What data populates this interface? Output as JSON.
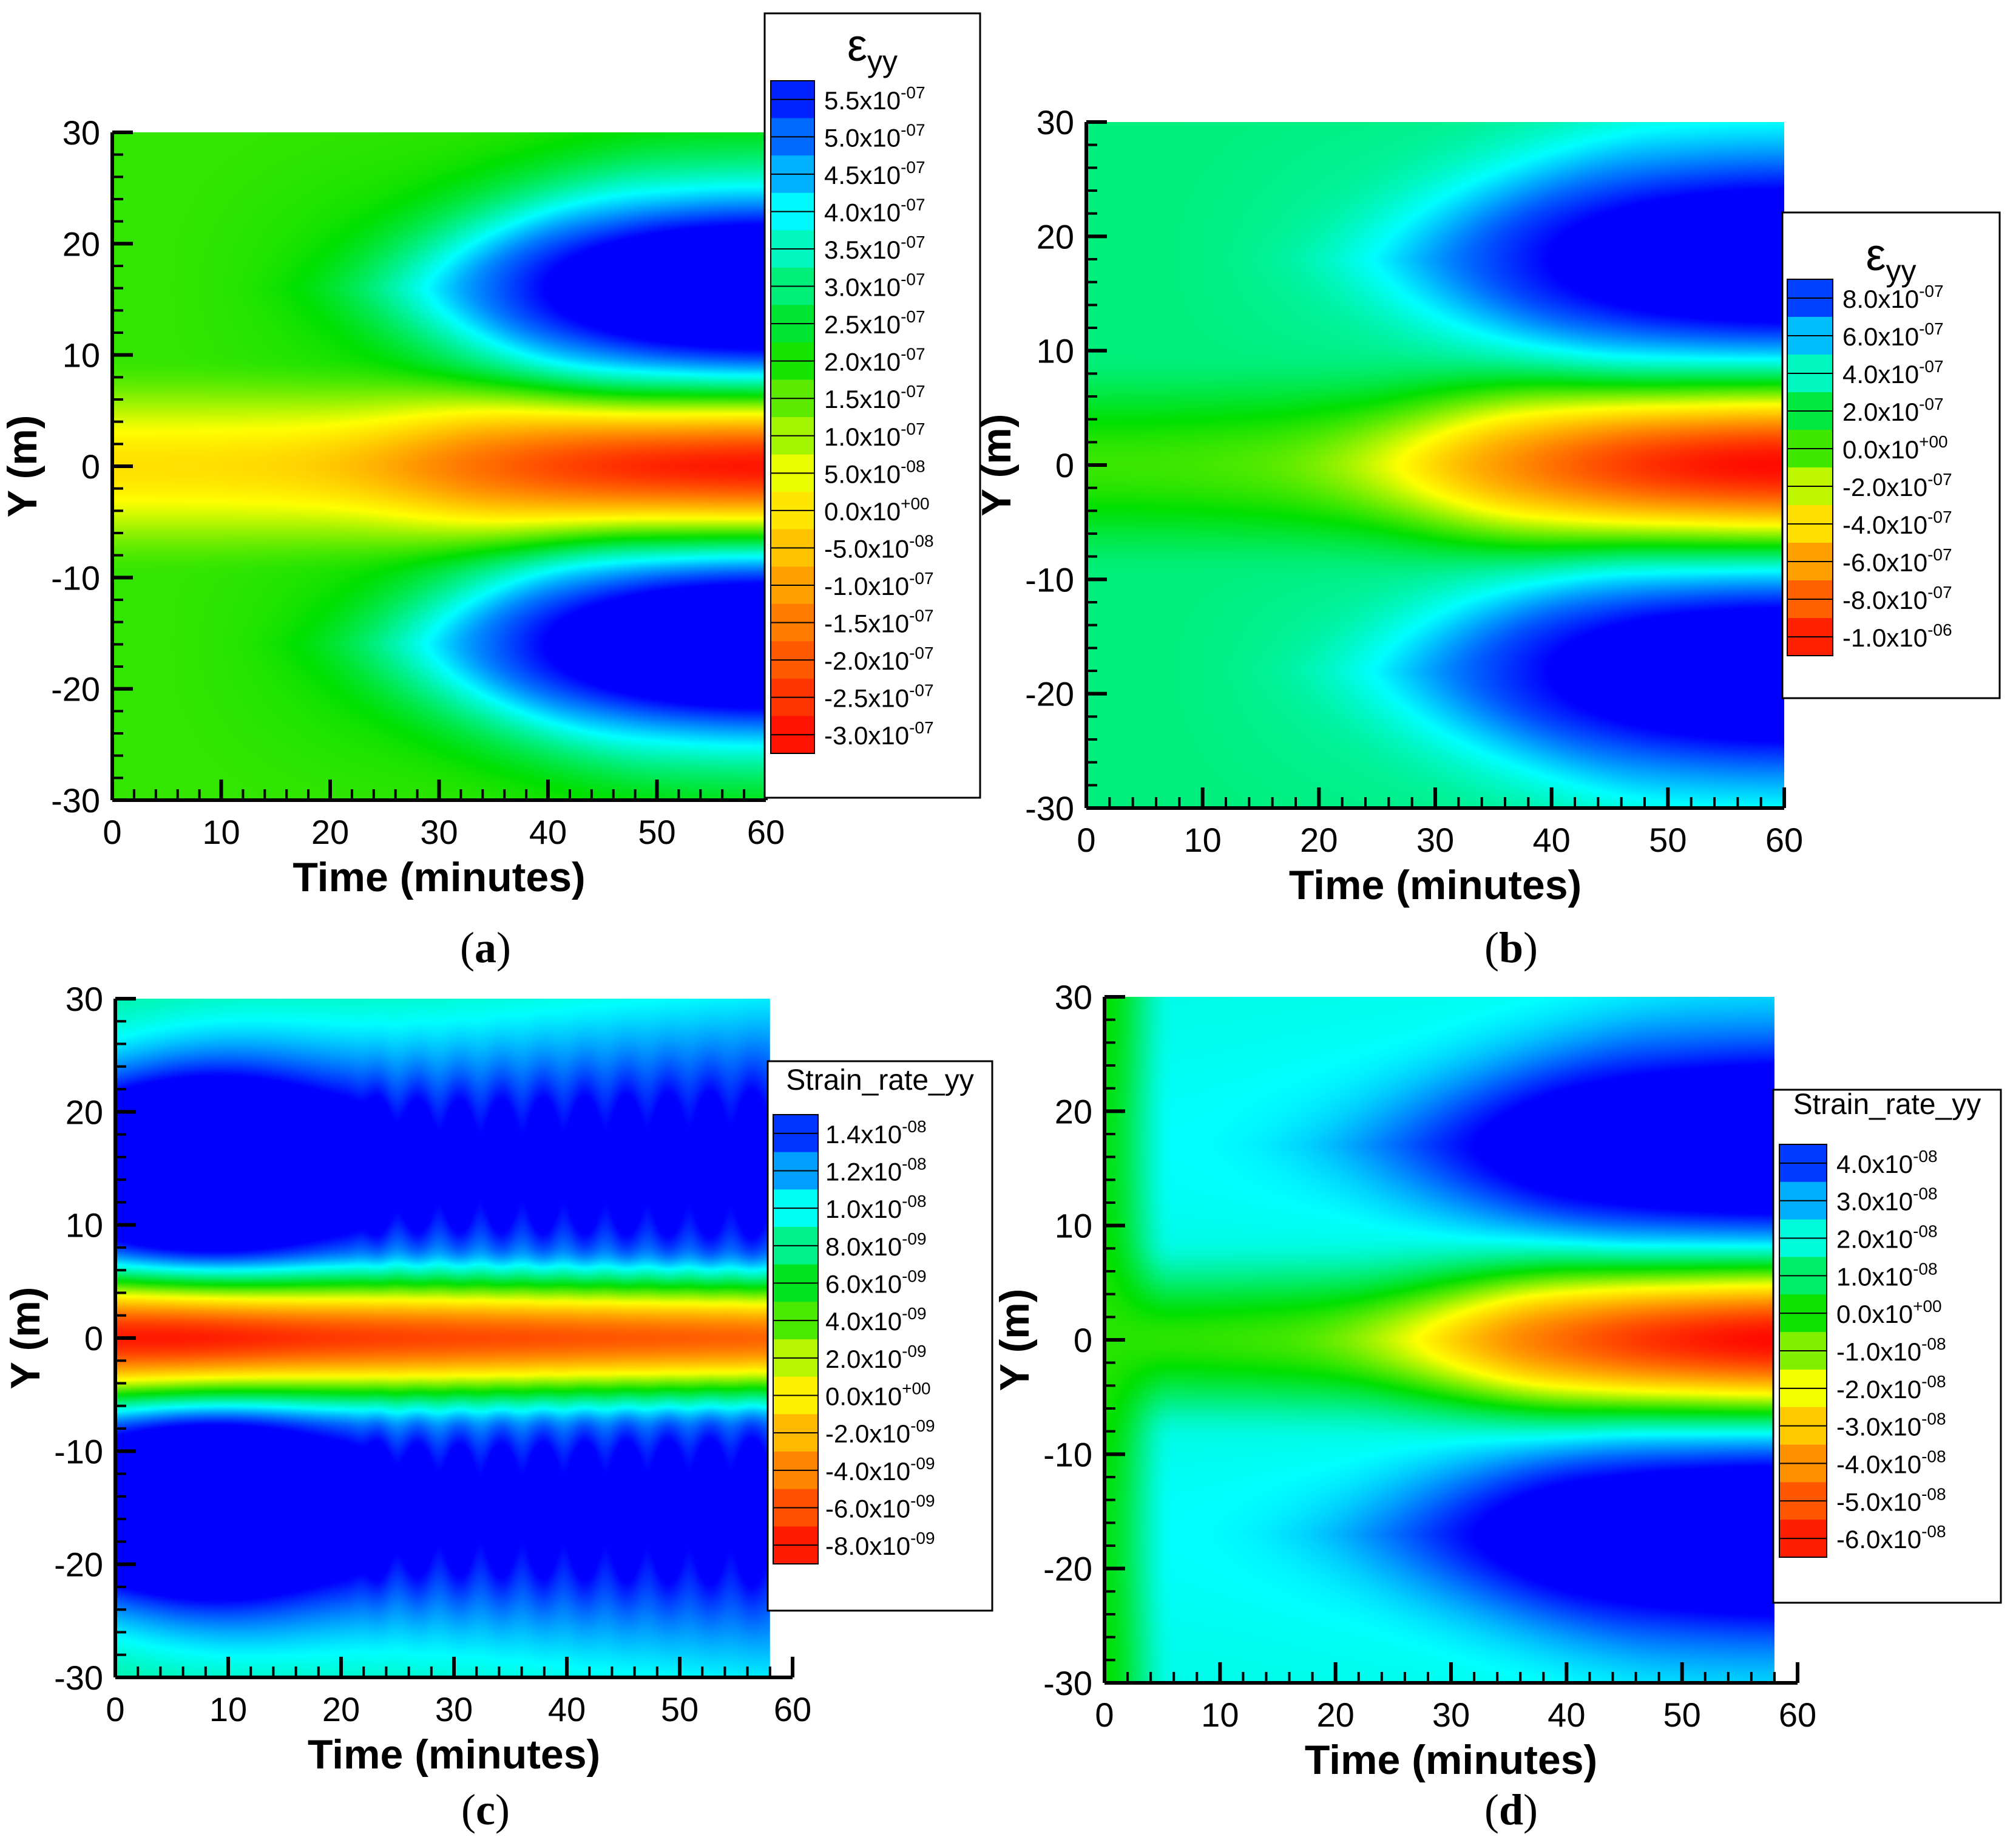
{
  "colors": {
    "colormap": [
      "#ff0000",
      "#ff8000",
      "#ffff00",
      "#00e000",
      "#00ffff",
      "#0000ff"
    ],
    "axis": "#000000",
    "background": "#ffffff"
  },
  "chart_data": [
    {
      "id": "a",
      "type": "heatmap",
      "caption": "(a)",
      "xlabel": "Time (minutes)",
      "ylabel": "Y (m)",
      "xlim": [
        0,
        60
      ],
      "ylim": [
        -30,
        30
      ],
      "x_data_max": 60,
      "x_ticks": [
        "0",
        "10",
        "20",
        "30",
        "40",
        "50",
        "60"
      ],
      "y_ticks": [
        "-30",
        "-20",
        "-10",
        "0",
        "10",
        "20",
        "30"
      ],
      "legend_title": "ε",
      "legend_title_sub": "yy",
      "legend_levels": [
        {
          "mantissa": "5.5x10",
          "exponent": "-07"
        },
        {
          "mantissa": "5.0x10",
          "exponent": "-07"
        },
        {
          "mantissa": "4.5x10",
          "exponent": "-07"
        },
        {
          "mantissa": "4.0x10",
          "exponent": "-07"
        },
        {
          "mantissa": "3.5x10",
          "exponent": "-07"
        },
        {
          "mantissa": "3.0x10",
          "exponent": "-07"
        },
        {
          "mantissa": "2.5x10",
          "exponent": "-07"
        },
        {
          "mantissa": "2.0x10",
          "exponent": "-07"
        },
        {
          "mantissa": "1.5x10",
          "exponent": "-07"
        },
        {
          "mantissa": "1.0x10",
          "exponent": "-07"
        },
        {
          "mantissa": "5.0x10",
          "exponent": "-08"
        },
        {
          "mantissa": "0.0x10",
          "exponent": "+00"
        },
        {
          "mantissa": "-5.0x10",
          "exponent": "-08"
        },
        {
          "mantissa": "-1.0x10",
          "exponent": "-07"
        },
        {
          "mantissa": "-1.5x10",
          "exponent": "-07"
        },
        {
          "mantissa": "-2.0x10",
          "exponent": "-07"
        },
        {
          "mantissa": "-2.5x10",
          "exponent": "-07"
        },
        {
          "mantissa": "-3.0x10",
          "exponent": "-07"
        }
      ],
      "field": {
        "pattern": "growth",
        "pos_peak": 5.5e-07,
        "neg_peak": -3e-07,
        "pos_center_y": 16,
        "pos_width": 6.5,
        "neg_width": 4.2,
        "onset_minutes": 10,
        "front_speed": 0.9
      }
    },
    {
      "id": "b",
      "type": "heatmap",
      "caption": "(b)",
      "xlabel": "Time (minutes)",
      "ylabel": "Y (m)",
      "xlim": [
        0,
        60
      ],
      "ylim": [
        -30,
        30
      ],
      "x_data_max": 60,
      "x_ticks": [
        "0",
        "10",
        "20",
        "30",
        "40",
        "50",
        "60"
      ],
      "y_ticks": [
        "-30",
        "-20",
        "-10",
        "0",
        "10",
        "20",
        "30"
      ],
      "legend_title": "ε",
      "legend_title_sub": "yy",
      "legend_levels": [
        {
          "mantissa": "8.0x10",
          "exponent": "-07"
        },
        {
          "mantissa": "6.0x10",
          "exponent": "-07"
        },
        {
          "mantissa": "4.0x10",
          "exponent": "-07"
        },
        {
          "mantissa": "2.0x10",
          "exponent": "-07"
        },
        {
          "mantissa": "0.0x10",
          "exponent": "+00"
        },
        {
          "mantissa": "-2.0x10",
          "exponent": "-07"
        },
        {
          "mantissa": "-4.0x10",
          "exponent": "-07"
        },
        {
          "mantissa": "-6.0x10",
          "exponent": "-07"
        },
        {
          "mantissa": "-8.0x10",
          "exponent": "-07"
        },
        {
          "mantissa": "-1.0x10",
          "exponent": "-06"
        }
      ],
      "field": {
        "pattern": "growth",
        "pos_peak": 8e-07,
        "neg_peak": -1e-06,
        "pos_center_y": 18,
        "pos_width": 7.0,
        "neg_width": 5.0,
        "onset_minutes": 12,
        "front_speed": 0.85
      }
    },
    {
      "id": "c",
      "type": "heatmap",
      "caption": "(c)",
      "xlabel": "Time (minutes)",
      "ylabel": "Y (m)",
      "xlim": [
        0,
        60
      ],
      "ylim": [
        -30,
        30
      ],
      "x_data_max": 58,
      "x_ticks": [
        "0",
        "10",
        "20",
        "30",
        "40",
        "50",
        "60"
      ],
      "y_ticks": [
        "-30",
        "-20",
        "-10",
        "0",
        "10",
        "20",
        "30"
      ],
      "legend_title": "Strain_rate_yy",
      "legend_title_sub": "",
      "legend_levels": [
        {
          "mantissa": "1.4x10",
          "exponent": "-08"
        },
        {
          "mantissa": "1.2x10",
          "exponent": "-08"
        },
        {
          "mantissa": "1.0x10",
          "exponent": "-08"
        },
        {
          "mantissa": "8.0x10",
          "exponent": "-09"
        },
        {
          "mantissa": "6.0x10",
          "exponent": "-09"
        },
        {
          "mantissa": "4.0x10",
          "exponent": "-09"
        },
        {
          "mantissa": "2.0x10",
          "exponent": "-09"
        },
        {
          "mantissa": "0.0x10",
          "exponent": "+00"
        },
        {
          "mantissa": "-2.0x10",
          "exponent": "-09"
        },
        {
          "mantissa": "-4.0x10",
          "exponent": "-09"
        },
        {
          "mantissa": "-6.0x10",
          "exponent": "-09"
        },
        {
          "mantissa": "-8.0x10",
          "exponent": "-09"
        }
      ],
      "field": {
        "pattern": "rate_early",
        "pos_peak": 1.4e-08,
        "neg_peak": -8e-09,
        "pos_center_y": 15,
        "pos_width": 6.0,
        "neg_width": 3.8
      }
    },
    {
      "id": "d",
      "type": "heatmap",
      "caption": "(d)",
      "xlabel": "Time (minutes)",
      "ylabel": "Y (m)",
      "xlim": [
        0,
        60
      ],
      "ylim": [
        -30,
        30
      ],
      "x_data_max": 58,
      "x_ticks": [
        "0",
        "10",
        "20",
        "30",
        "40",
        "50",
        "60"
      ],
      "y_ticks": [
        "-30",
        "-20",
        "-10",
        "0",
        "10",
        "20",
        "30"
      ],
      "legend_title": "Strain_rate_yy",
      "legend_title_sub": "",
      "legend_levels": [
        {
          "mantissa": "4.0x10",
          "exponent": "-08"
        },
        {
          "mantissa": "3.0x10",
          "exponent": "-08"
        },
        {
          "mantissa": "2.0x10",
          "exponent": "-08"
        },
        {
          "mantissa": "1.0x10",
          "exponent": "-08"
        },
        {
          "mantissa": "0.0x10",
          "exponent": "+00"
        },
        {
          "mantissa": "-1.0x10",
          "exponent": "-08"
        },
        {
          "mantissa": "-2.0x10",
          "exponent": "-08"
        },
        {
          "mantissa": "-3.0x10",
          "exponent": "-08"
        },
        {
          "mantissa": "-4.0x10",
          "exponent": "-08"
        },
        {
          "mantissa": "-5.0x10",
          "exponent": "-08"
        },
        {
          "mantissa": "-6.0x10",
          "exponent": "-08"
        }
      ],
      "field": {
        "pattern": "rate_growth",
        "pos_peak": 4e-08,
        "neg_peak": -6e-08,
        "pos_center_y": 17,
        "pos_width": 6.5,
        "neg_width": 4.8,
        "onset_minutes": 14,
        "front_speed": 0.8
      }
    }
  ]
}
